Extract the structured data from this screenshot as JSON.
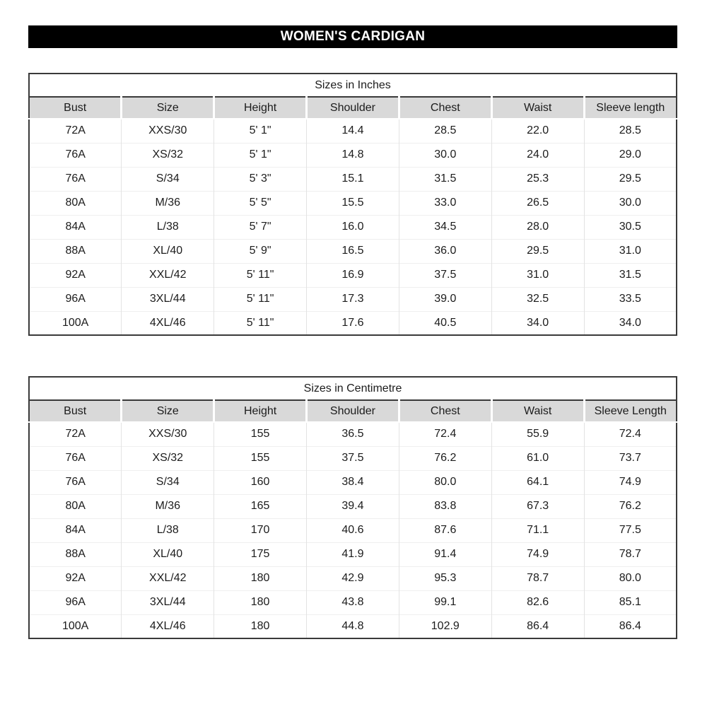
{
  "page_title": "WOMEN'S CARDIGAN",
  "colors": {
    "banner_bg": "#000000",
    "banner_text": "#ffffff",
    "header_bg": "#d9d9d9",
    "border_dark": "#3a3a3a"
  },
  "tables": [
    {
      "id": "sizes-in-inches",
      "title": "Sizes in Inches",
      "columns": [
        "Bust",
        "Size",
        "Height",
        "Shoulder",
        "Chest",
        "Waist",
        "Sleeve length"
      ],
      "rows": [
        [
          "72A",
          "XXS/30",
          "5' 1\"",
          "14.4",
          "28.5",
          "22.0",
          "28.5"
        ],
        [
          "76A",
          "XS/32",
          "5' 1\"",
          "14.8",
          "30.0",
          "24.0",
          "29.0"
        ],
        [
          "76A",
          "S/34",
          "5' 3\"",
          "15.1",
          "31.5",
          "25.3",
          "29.5"
        ],
        [
          "80A",
          "M/36",
          "5' 5\"",
          "15.5",
          "33.0",
          "26.5",
          "30.0"
        ],
        [
          "84A",
          "L/38",
          "5' 7\"",
          "16.0",
          "34.5",
          "28.0",
          "30.5"
        ],
        [
          "88A",
          "XL/40",
          "5' 9\"",
          "16.5",
          "36.0",
          "29.5",
          "31.0"
        ],
        [
          "92A",
          "XXL/42",
          "5' 11\"",
          "16.9",
          "37.5",
          "31.0",
          "31.5"
        ],
        [
          "96A",
          "3XL/44",
          "5' 11\"",
          "17.3",
          "39.0",
          "32.5",
          "33.5"
        ],
        [
          "100A",
          "4XL/46",
          "5' 11\"",
          "17.6",
          "40.5",
          "34.0",
          "34.0"
        ]
      ]
    },
    {
      "id": "sizes-in-centimetre",
      "title": "Sizes in Centimetre",
      "columns": [
        "Bust",
        "Size",
        "Height",
        "Shoulder",
        "Chest",
        "Waist",
        "Sleeve Length"
      ],
      "rows": [
        [
          "72A",
          "XXS/30",
          "155",
          "36.5",
          "72.4",
          "55.9",
          "72.4"
        ],
        [
          "76A",
          "XS/32",
          "155",
          "37.5",
          "76.2",
          "61.0",
          "73.7"
        ],
        [
          "76A",
          "S/34",
          "160",
          "38.4",
          "80.0",
          "64.1",
          "74.9"
        ],
        [
          "80A",
          "M/36",
          "165",
          "39.4",
          "83.8",
          "67.3",
          "76.2"
        ],
        [
          "84A",
          "L/38",
          "170",
          "40.6",
          "87.6",
          "71.1",
          "77.5"
        ],
        [
          "88A",
          "XL/40",
          "175",
          "41.9",
          "91.4",
          "74.9",
          "78.7"
        ],
        [
          "92A",
          "XXL/42",
          "180",
          "42.9",
          "95.3",
          "78.7",
          "80.0"
        ],
        [
          "96A",
          "3XL/44",
          "180",
          "43.8",
          "99.1",
          "82.6",
          "85.1"
        ],
        [
          "100A",
          "4XL/46",
          "180",
          "44.8",
          "102.9",
          "86.4",
          "86.4"
        ]
      ]
    }
  ]
}
